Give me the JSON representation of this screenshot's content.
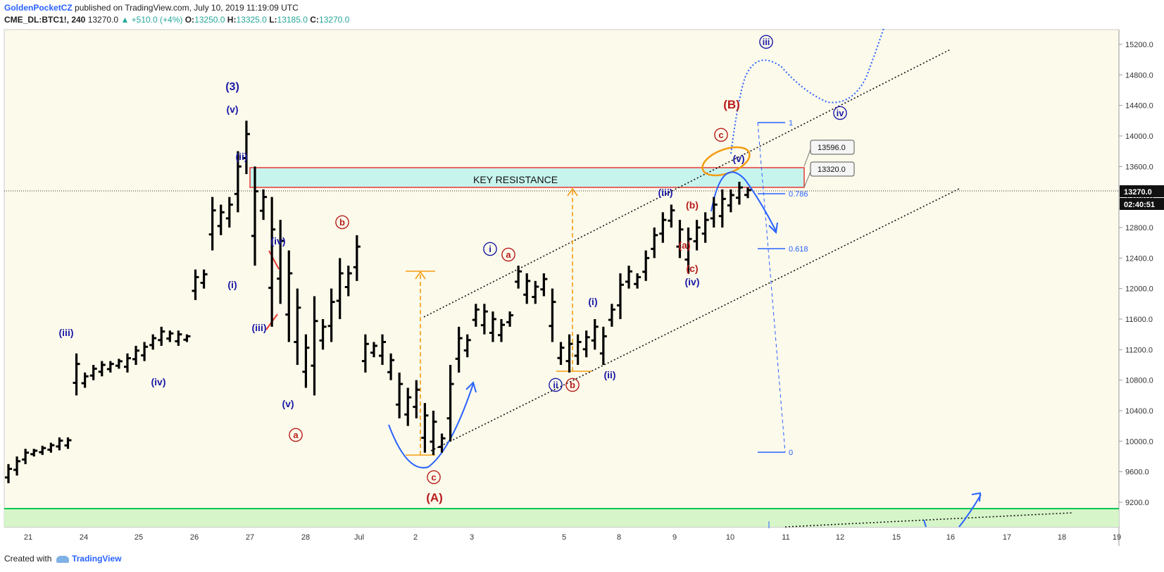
{
  "header": {
    "author": "GoldenPocketCZ",
    "published_text": "published on TradingView.com, July 10, 2019 11:19:09 UTC",
    "symbol": "CME_DL:BTC1!, 240",
    "last": "13270.0",
    "change": "▲ +510.0 (+4%)",
    "o_label": "O:",
    "o_value": "13250.0",
    "h_label": "H:",
    "h_value": "13325.0",
    "l_label": "L:",
    "l_value": "13185.0",
    "c_label": "C:",
    "c_value": "13270.0"
  },
  "footer": {
    "created_with": "Created with",
    "brand": "TradingView"
  },
  "colors": {
    "wave_blue": "#1a1aa6",
    "wave_red": "#b71c1c",
    "candle": "#000000",
    "resistance_fill": "#c8f4ee",
    "resistance_border": "#e53935",
    "support_fill": "#d6f5c9",
    "support_line": "#00c853",
    "fib": "#2962ff",
    "orange": "#f39c12"
  },
  "chart_data": {
    "type": "ohlc",
    "title": "",
    "ylim": [
      9000,
      15400
    ],
    "y_ticks": [
      "15200.0",
      "14800.0",
      "14400.0",
      "14000.0",
      "13600.0",
      "13200.0",
      "12800.0",
      "12400.0",
      "12000.0",
      "11600.0",
      "11200.0",
      "10800.0",
      "10400.0",
      "10000.0",
      "9600.0",
      "9200.0"
    ],
    "x_ticks": [
      "21",
      "24",
      "25",
      "26",
      "27",
      "28",
      "Jul",
      "2",
      "3",
      "5",
      "8",
      "9",
      "10",
      "11",
      "12",
      "15",
      "16",
      "17",
      "18",
      "19"
    ],
    "last_price_label": "13270.0",
    "countdown_label": "02:40:51",
    "price_points": [
      [
        9450,
        9700
      ],
      [
        9550,
        9800
      ],
      [
        9700,
        9900
      ],
      [
        9800,
        9900
      ],
      [
        9820,
        9940
      ],
      [
        9850,
        9980
      ],
      [
        9880,
        10050
      ],
      [
        9900,
        10050
      ],
      [
        10600,
        11150
      ],
      [
        10700,
        10900
      ],
      [
        10800,
        11000
      ],
      [
        10850,
        11050
      ],
      [
        10900,
        11050
      ],
      [
        10950,
        11080
      ],
      [
        10900,
        11150
      ],
      [
        11000,
        11250
      ],
      [
        11050,
        11300
      ],
      [
        11200,
        11400
      ],
      [
        11250,
        11500
      ],
      [
        11300,
        11450
      ],
      [
        11250,
        11450
      ],
      [
        11300,
        11400
      ],
      [
        11850,
        12250
      ],
      [
        12000,
        12250
      ],
      [
        12500,
        13200
      ],
      [
        12700,
        13100
      ],
      [
        12800,
        13200
      ],
      [
        13000,
        13800
      ],
      [
        13500,
        14200
      ],
      [
        12300,
        13600
      ],
      [
        12900,
        13300
      ],
      [
        11500,
        13200
      ],
      [
        11800,
        12900
      ],
      [
        11300,
        12500
      ],
      [
        11000,
        12000
      ],
      [
        10700,
        11400
      ],
      [
        10600,
        11900
      ],
      [
        11200,
        11600
      ],
      [
        11300,
        12000
      ],
      [
        11600,
        12400
      ],
      [
        11900,
        12300
      ],
      [
        12100,
        12700
      ],
      [
        10900,
        11400
      ],
      [
        11100,
        11300
      ],
      [
        11000,
        11400
      ],
      [
        10800,
        11150
      ],
      [
        10300,
        10900
      ],
      [
        10200,
        10700
      ],
      [
        10300,
        10800
      ],
      [
        9850,
        10500
      ],
      [
        9820,
        10400
      ],
      [
        9850,
        10100
      ],
      [
        10000,
        11000
      ],
      [
        10900,
        11500
      ],
      [
        11100,
        11400
      ],
      [
        11500,
        11800
      ],
      [
        11400,
        11800
      ],
      [
        11300,
        11700
      ],
      [
        11300,
        11600
      ],
      [
        11500,
        11700
      ],
      [
        12000,
        12300
      ],
      [
        11800,
        12200
      ],
      [
        11800,
        12100
      ],
      [
        11900,
        12200
      ],
      [
        11300,
        12000
      ],
      [
        11000,
        11300
      ],
      [
        10900,
        11400
      ],
      [
        11000,
        11400
      ],
      [
        11100,
        11450
      ],
      [
        11200,
        11600
      ],
      [
        11000,
        11500
      ],
      [
        11500,
        11800
      ],
      [
        11600,
        12200
      ],
      [
        12000,
        12300
      ],
      [
        12000,
        12200
      ],
      [
        12100,
        12500
      ],
      [
        12400,
        12800
      ],
      [
        12600,
        13000
      ],
      [
        12800,
        13100
      ],
      [
        12400,
        12900
      ],
      [
        12200,
        12800
      ],
      [
        12500,
        12900
      ],
      [
        12600,
        13000
      ],
      [
        12800,
        13200
      ],
      [
        12800,
        13300
      ],
      [
        13000,
        13300
      ],
      [
        13100,
        13400
      ],
      [
        13185,
        13325
      ]
    ],
    "annotations": [
      {
        "label": "(3)",
        "color": "blue"
      },
      {
        "label": "(v)",
        "color": "blue"
      },
      {
        "label": "(ii)",
        "color": "blue"
      },
      {
        "label": "(i)",
        "color": "blue"
      },
      {
        "label": "(iii)",
        "color": "blue"
      },
      {
        "label": "(iv)",
        "color": "blue"
      },
      {
        "label": "(iv)",
        "color": "blue"
      },
      {
        "label": "(iii)",
        "color": "blue"
      },
      {
        "label": "(v)",
        "color": "blue"
      },
      {
        "label": "a",
        "color": "red",
        "circled": true
      },
      {
        "label": "b",
        "color": "red",
        "circled": true
      },
      {
        "label": "c",
        "color": "red",
        "circled": true
      },
      {
        "label": "(A)",
        "color": "red"
      },
      {
        "label": "i",
        "color": "blue",
        "circled": true
      },
      {
        "label": "a",
        "color": "red",
        "circled": true
      },
      {
        "label": "ii",
        "color": "blue",
        "circled": true
      },
      {
        "label": "b",
        "color": "red",
        "circled": true
      },
      {
        "label": "(i)",
        "color": "blue"
      },
      {
        "label": "(ii)",
        "color": "blue"
      },
      {
        "label": "(iii)",
        "color": "blue"
      },
      {
        "label": "(a)",
        "color": "red"
      },
      {
        "label": "(b)",
        "color": "red"
      },
      {
        "label": "(c)",
        "color": "red"
      },
      {
        "label": "(iv)",
        "color": "blue"
      },
      {
        "label": "(v)",
        "color": "blue"
      },
      {
        "label": "c",
        "color": "red",
        "circled": true
      },
      {
        "label": "(B)",
        "color": "red"
      },
      {
        "label": "iii",
        "color": "blue",
        "circled": true
      },
      {
        "label": "iv",
        "color": "blue",
        "circled": true
      }
    ],
    "resistance_zone": {
      "label": "KEY RESISTANCE",
      "from": 13270,
      "to": 13596
    },
    "price_labels": [
      "13596.0",
      "13320.0"
    ],
    "fib_levels": [
      {
        "label": "1"
      },
      {
        "label": "0.786"
      },
      {
        "label": "0.618"
      },
      {
        "label": "0"
      }
    ]
  }
}
